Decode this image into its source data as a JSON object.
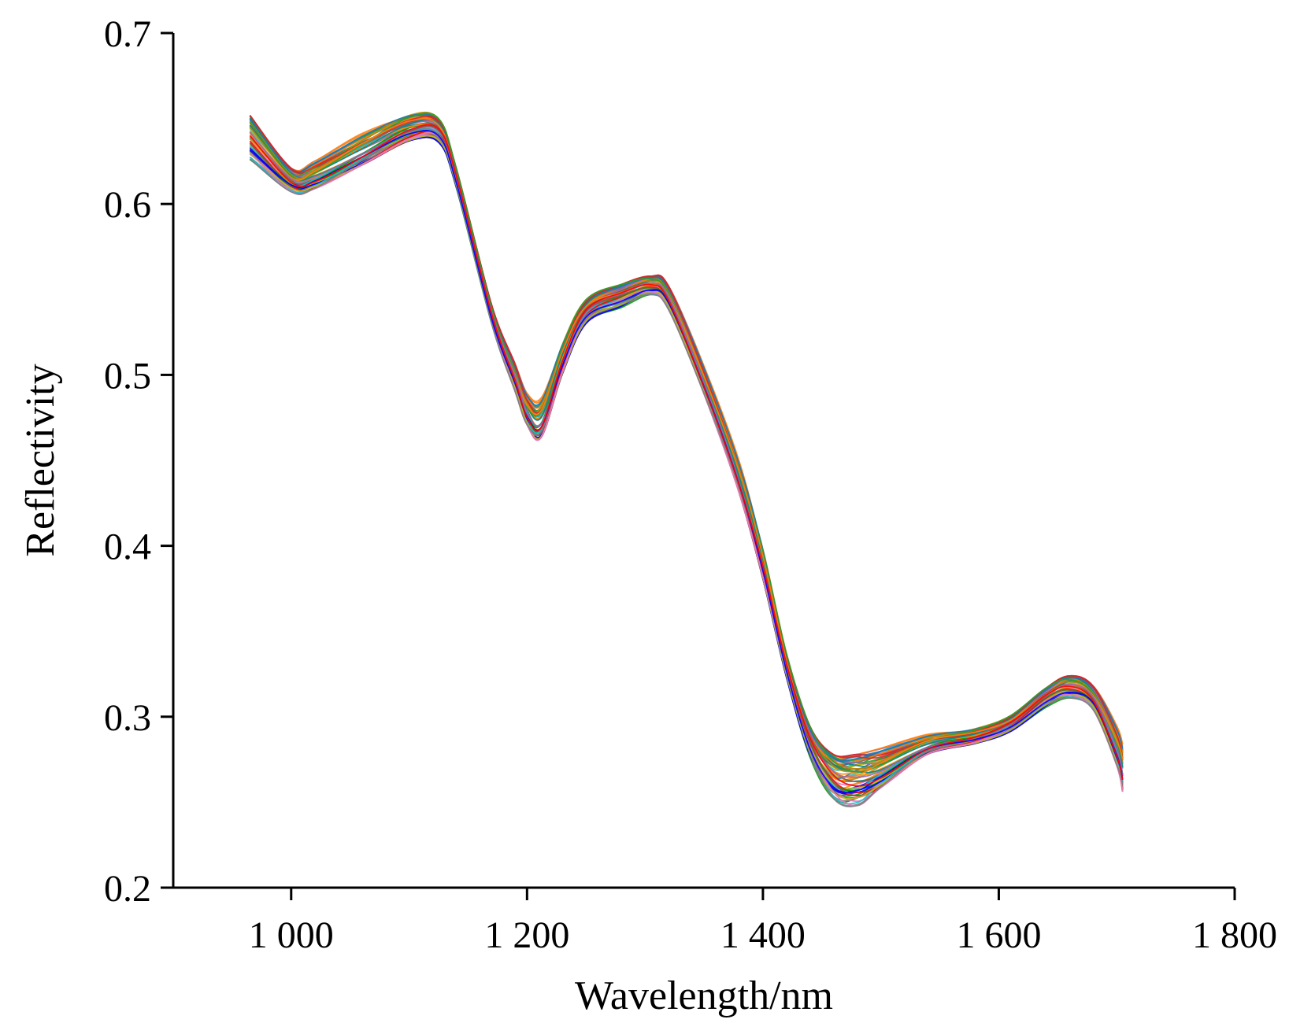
{
  "chart_data": {
    "type": "line",
    "title": "",
    "xlabel": "Wavelength/nm",
    "ylabel": "Reflectivity",
    "xlim": [
      900,
      1800
    ],
    "ylim": [
      0.2,
      0.7
    ],
    "x_ticks": [
      {
        "value": 1000,
        "label": "1 000"
      },
      {
        "value": 1200,
        "label": "1 200"
      },
      {
        "value": 1400,
        "label": "1 400"
      },
      {
        "value": 1600,
        "label": "1 600"
      },
      {
        "value": 1800,
        "label": "1 800"
      }
    ],
    "y_ticks": [
      {
        "value": 0.2,
        "label": "0.2"
      },
      {
        "value": 0.3,
        "label": "0.3"
      },
      {
        "value": 0.4,
        "label": "0.4"
      },
      {
        "value": 0.5,
        "label": "0.5"
      },
      {
        "value": 0.6,
        "label": "0.6"
      },
      {
        "value": 0.7,
        "label": "0.7"
      }
    ],
    "grid": false,
    "legend": "none",
    "series_count": 60,
    "x": [
      965,
      1000,
      1020,
      1060,
      1100,
      1125,
      1140,
      1170,
      1190,
      1200,
      1212,
      1230,
      1250,
      1280,
      1305,
      1320,
      1350,
      1380,
      1400,
      1420,
      1440,
      1460,
      1480,
      1500,
      1540,
      1580,
      1610,
      1640,
      1660,
      1680,
      1700,
      1705
    ],
    "mean_reflectivity": [
      0.638,
      0.614,
      0.617,
      0.632,
      0.645,
      0.643,
      0.615,
      0.535,
      0.498,
      0.48,
      0.475,
      0.51,
      0.537,
      0.546,
      0.552,
      0.545,
      0.497,
      0.44,
      0.39,
      0.33,
      0.285,
      0.264,
      0.263,
      0.27,
      0.284,
      0.289,
      0.296,
      0.311,
      0.317,
      0.311,
      0.283,
      0.27
    ],
    "spread_reflectivity": [
      0.012,
      0.006,
      0.007,
      0.008,
      0.007,
      0.006,
      0.005,
      0.005,
      0.007,
      0.008,
      0.01,
      0.008,
      0.006,
      0.006,
      0.005,
      0.006,
      0.007,
      0.008,
      0.008,
      0.006,
      0.008,
      0.012,
      0.013,
      0.01,
      0.005,
      0.004,
      0.004,
      0.005,
      0.006,
      0.006,
      0.01,
      0.012
    ],
    "series_colors": [
      "#1f77b4",
      "#d62728",
      "#2ca02c",
      "#ff7f0e",
      "#9467bd",
      "#8c564b",
      "#17becf",
      "#bcbd22",
      "#e377c2",
      "#7f7f7f",
      "#0000ff",
      "#ff0000",
      "#00a000",
      "#ff8c00",
      "#008b8b",
      "#b8860b"
    ]
  }
}
